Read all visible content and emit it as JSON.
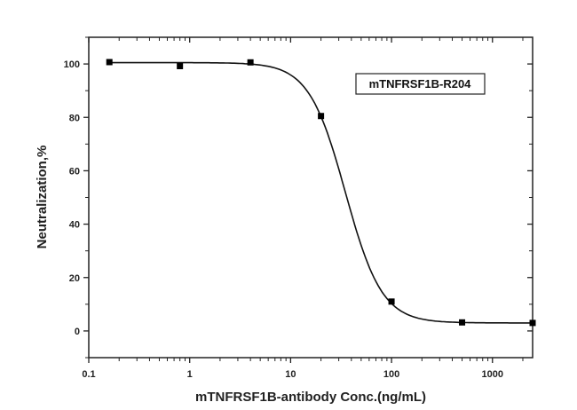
{
  "chart_data": {
    "type": "scatter",
    "title": "",
    "xlabel": "mTNFRSF1B-antibody Conc.(ng/mL)",
    "ylabel": "Neutralization,%",
    "xscale": "log",
    "xlim": [
      0.1,
      2500
    ],
    "ylim": [
      -10,
      110
    ],
    "xticks": [
      "0.1",
      "1",
      "10",
      "100",
      "1000"
    ],
    "yticks": [
      "0",
      "20",
      "40",
      "60",
      "80",
      "100"
    ],
    "grid": false,
    "legend_placement": "top-right",
    "series": [
      {
        "name": "mTNFRSF1B-R204",
        "marker": "square",
        "color": "#000000",
        "x": [
          0.16,
          0.8,
          4,
          20,
          100,
          500,
          2500
        ],
        "y": [
          100.7,
          99.2,
          100.6,
          80.5,
          11,
          3.2,
          3
        ]
      }
    ],
    "fit": {
      "type": "4PL",
      "top": 100.5,
      "bottom": 3,
      "ec50": 35,
      "hill": 2.4
    }
  }
}
